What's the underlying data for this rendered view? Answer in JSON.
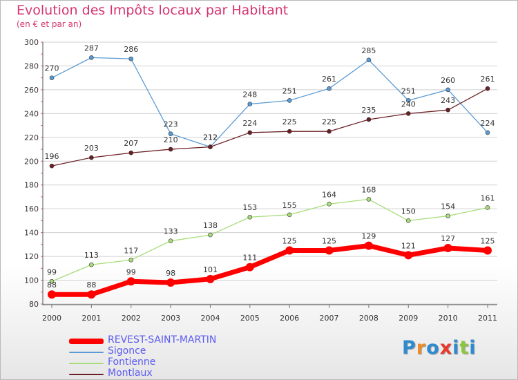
{
  "title": "Evolution des Impôts locaux par Habitant",
  "subtitle": "(en € et par an)",
  "chart_data": {
    "type": "line",
    "x": [
      "2000",
      "2001",
      "2002",
      "2003",
      "2004",
      "2005",
      "2006",
      "2007",
      "2008",
      "2009",
      "2010",
      "2011"
    ],
    "ylim": [
      80,
      300
    ],
    "yticks": [
      80,
      100,
      120,
      140,
      160,
      180,
      200,
      220,
      240,
      260,
      280,
      300
    ],
    "grid": true,
    "legend_position": "bottom-left",
    "series": [
      {
        "name": "Sigonce",
        "color": "#5b9bd5",
        "values": [
          270,
          287,
          286,
          223,
          212,
          248,
          251,
          261,
          285,
          251,
          260,
          224
        ]
      },
      {
        "name": "Montlaux",
        "color": "#6b1f24",
        "values": [
          196,
          203,
          207,
          210,
          212,
          224,
          225,
          225,
          235,
          240,
          243,
          261
        ]
      },
      {
        "name": "Fontienne",
        "color": "#a8dc7a",
        "values": [
          99,
          113,
          117,
          133,
          138,
          153,
          155,
          164,
          168,
          150,
          154,
          161
        ]
      },
      {
        "name": "REVEST-SAINT-MARTIN",
        "color": "#ff0000",
        "values": [
          88,
          88,
          99,
          98,
          101,
          111,
          125,
          125,
          129,
          121,
          127,
          125
        ]
      }
    ]
  },
  "legend": [
    {
      "label": "REVEST-SAINT-MARTIN",
      "color": "#ff0000"
    },
    {
      "label": "Sigonce",
      "color": "#5b9bd5"
    },
    {
      "label": "Fontienne",
      "color": "#a8dc7a"
    },
    {
      "label": "Montlaux",
      "color": "#6b1f24"
    }
  ],
  "logo": {
    "text": "Proxiti",
    "letters": [
      "P",
      "r",
      "o",
      "x",
      "i",
      "t",
      "i"
    ],
    "colors": [
      "#2e8bd0",
      "#f08a24",
      "#2e8bd0",
      "#e8392c",
      "#2e8bd0",
      "#8cc63f",
      "#2e8bd0"
    ]
  }
}
